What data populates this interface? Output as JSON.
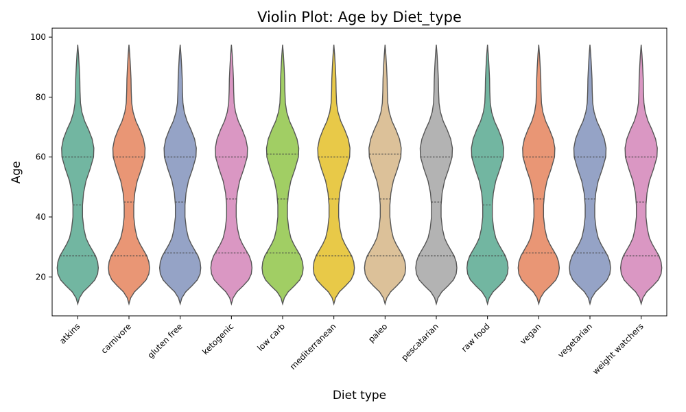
{
  "chart_data": {
    "type": "violin",
    "title": "Violin Plot: Age by Diet_type",
    "xlabel": "Diet type",
    "ylabel": "Age",
    "ylim": [
      7,
      103
    ],
    "yticks": [
      20,
      40,
      60,
      80,
      100
    ],
    "grid": false,
    "categories": [
      "atkins",
      "carnivore",
      "gluten free",
      "ketogenic",
      "low carb",
      "mediterranean",
      "paleo",
      "pescatarian",
      "raw food",
      "vegan",
      "vegetarian",
      "weight watchers"
    ],
    "colors": [
      "#72b6a1",
      "#e99675",
      "#95a3c6",
      "#da97c3",
      "#a1ce64",
      "#e8c948",
      "#dcc199",
      "#b3b3b3",
      "#72b6a1",
      "#e99675",
      "#95a3c6",
      "#da97c3"
    ],
    "distribution_range": [
      11,
      97.5
    ],
    "quartiles": [
      {
        "q1": 27,
        "median": 44,
        "q3": 60
      },
      {
        "q1": 27,
        "median": 45,
        "q3": 60
      },
      {
        "q1": 28,
        "median": 45,
        "q3": 60
      },
      {
        "q1": 28,
        "median": 46,
        "q3": 60
      },
      {
        "q1": 28,
        "median": 46,
        "q3": 61
      },
      {
        "q1": 27,
        "median": 46,
        "q3": 60
      },
      {
        "q1": 27,
        "median": 46,
        "q3": 61
      },
      {
        "q1": 27,
        "median": 45,
        "q3": 60
      },
      {
        "q1": 27,
        "median": 44,
        "q3": 60
      },
      {
        "q1": 28,
        "median": 46,
        "q3": 60
      },
      {
        "q1": 28,
        "median": 46,
        "q3": 60
      },
      {
        "q1": 27,
        "median": 45,
        "q3": 60
      }
    ]
  }
}
